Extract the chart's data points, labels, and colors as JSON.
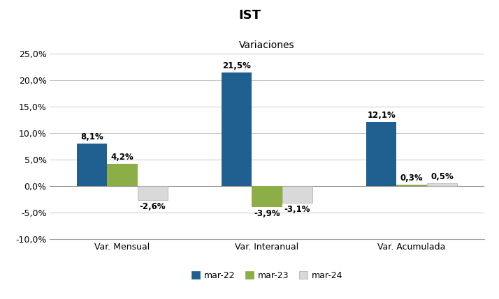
{
  "title": "IST",
  "subtitle": "Variaciones",
  "categories": [
    "Var. Mensual",
    "Var. Interanual",
    "Var. Acumulada"
  ],
  "series": {
    "mar-22": [
      8.1,
      21.5,
      12.1
    ],
    "mar-23": [
      4.2,
      -3.9,
      0.3
    ],
    "mar-24": [
      -2.6,
      -3.1,
      0.5
    ]
  },
  "colors": {
    "mar-22": "#1F6091",
    "mar-23": "#8DAE47",
    "mar-24": "#D9D9D9"
  },
  "edge_colors": {
    "mar-22": "none",
    "mar-23": "none",
    "mar-24": "#AAAAAA"
  },
  "ylim": [
    -10,
    25
  ],
  "yticks": [
    -10,
    -5,
    0,
    5,
    10,
    15,
    20,
    25
  ],
  "background_color": "#FFFFFF",
  "grid_color": "#C8C8C8",
  "title_fontsize": 13,
  "subtitle_fontsize": 10,
  "label_fontsize": 8.5,
  "legend_fontsize": 9,
  "axis_label_fontsize": 9,
  "bar_width": 0.21
}
